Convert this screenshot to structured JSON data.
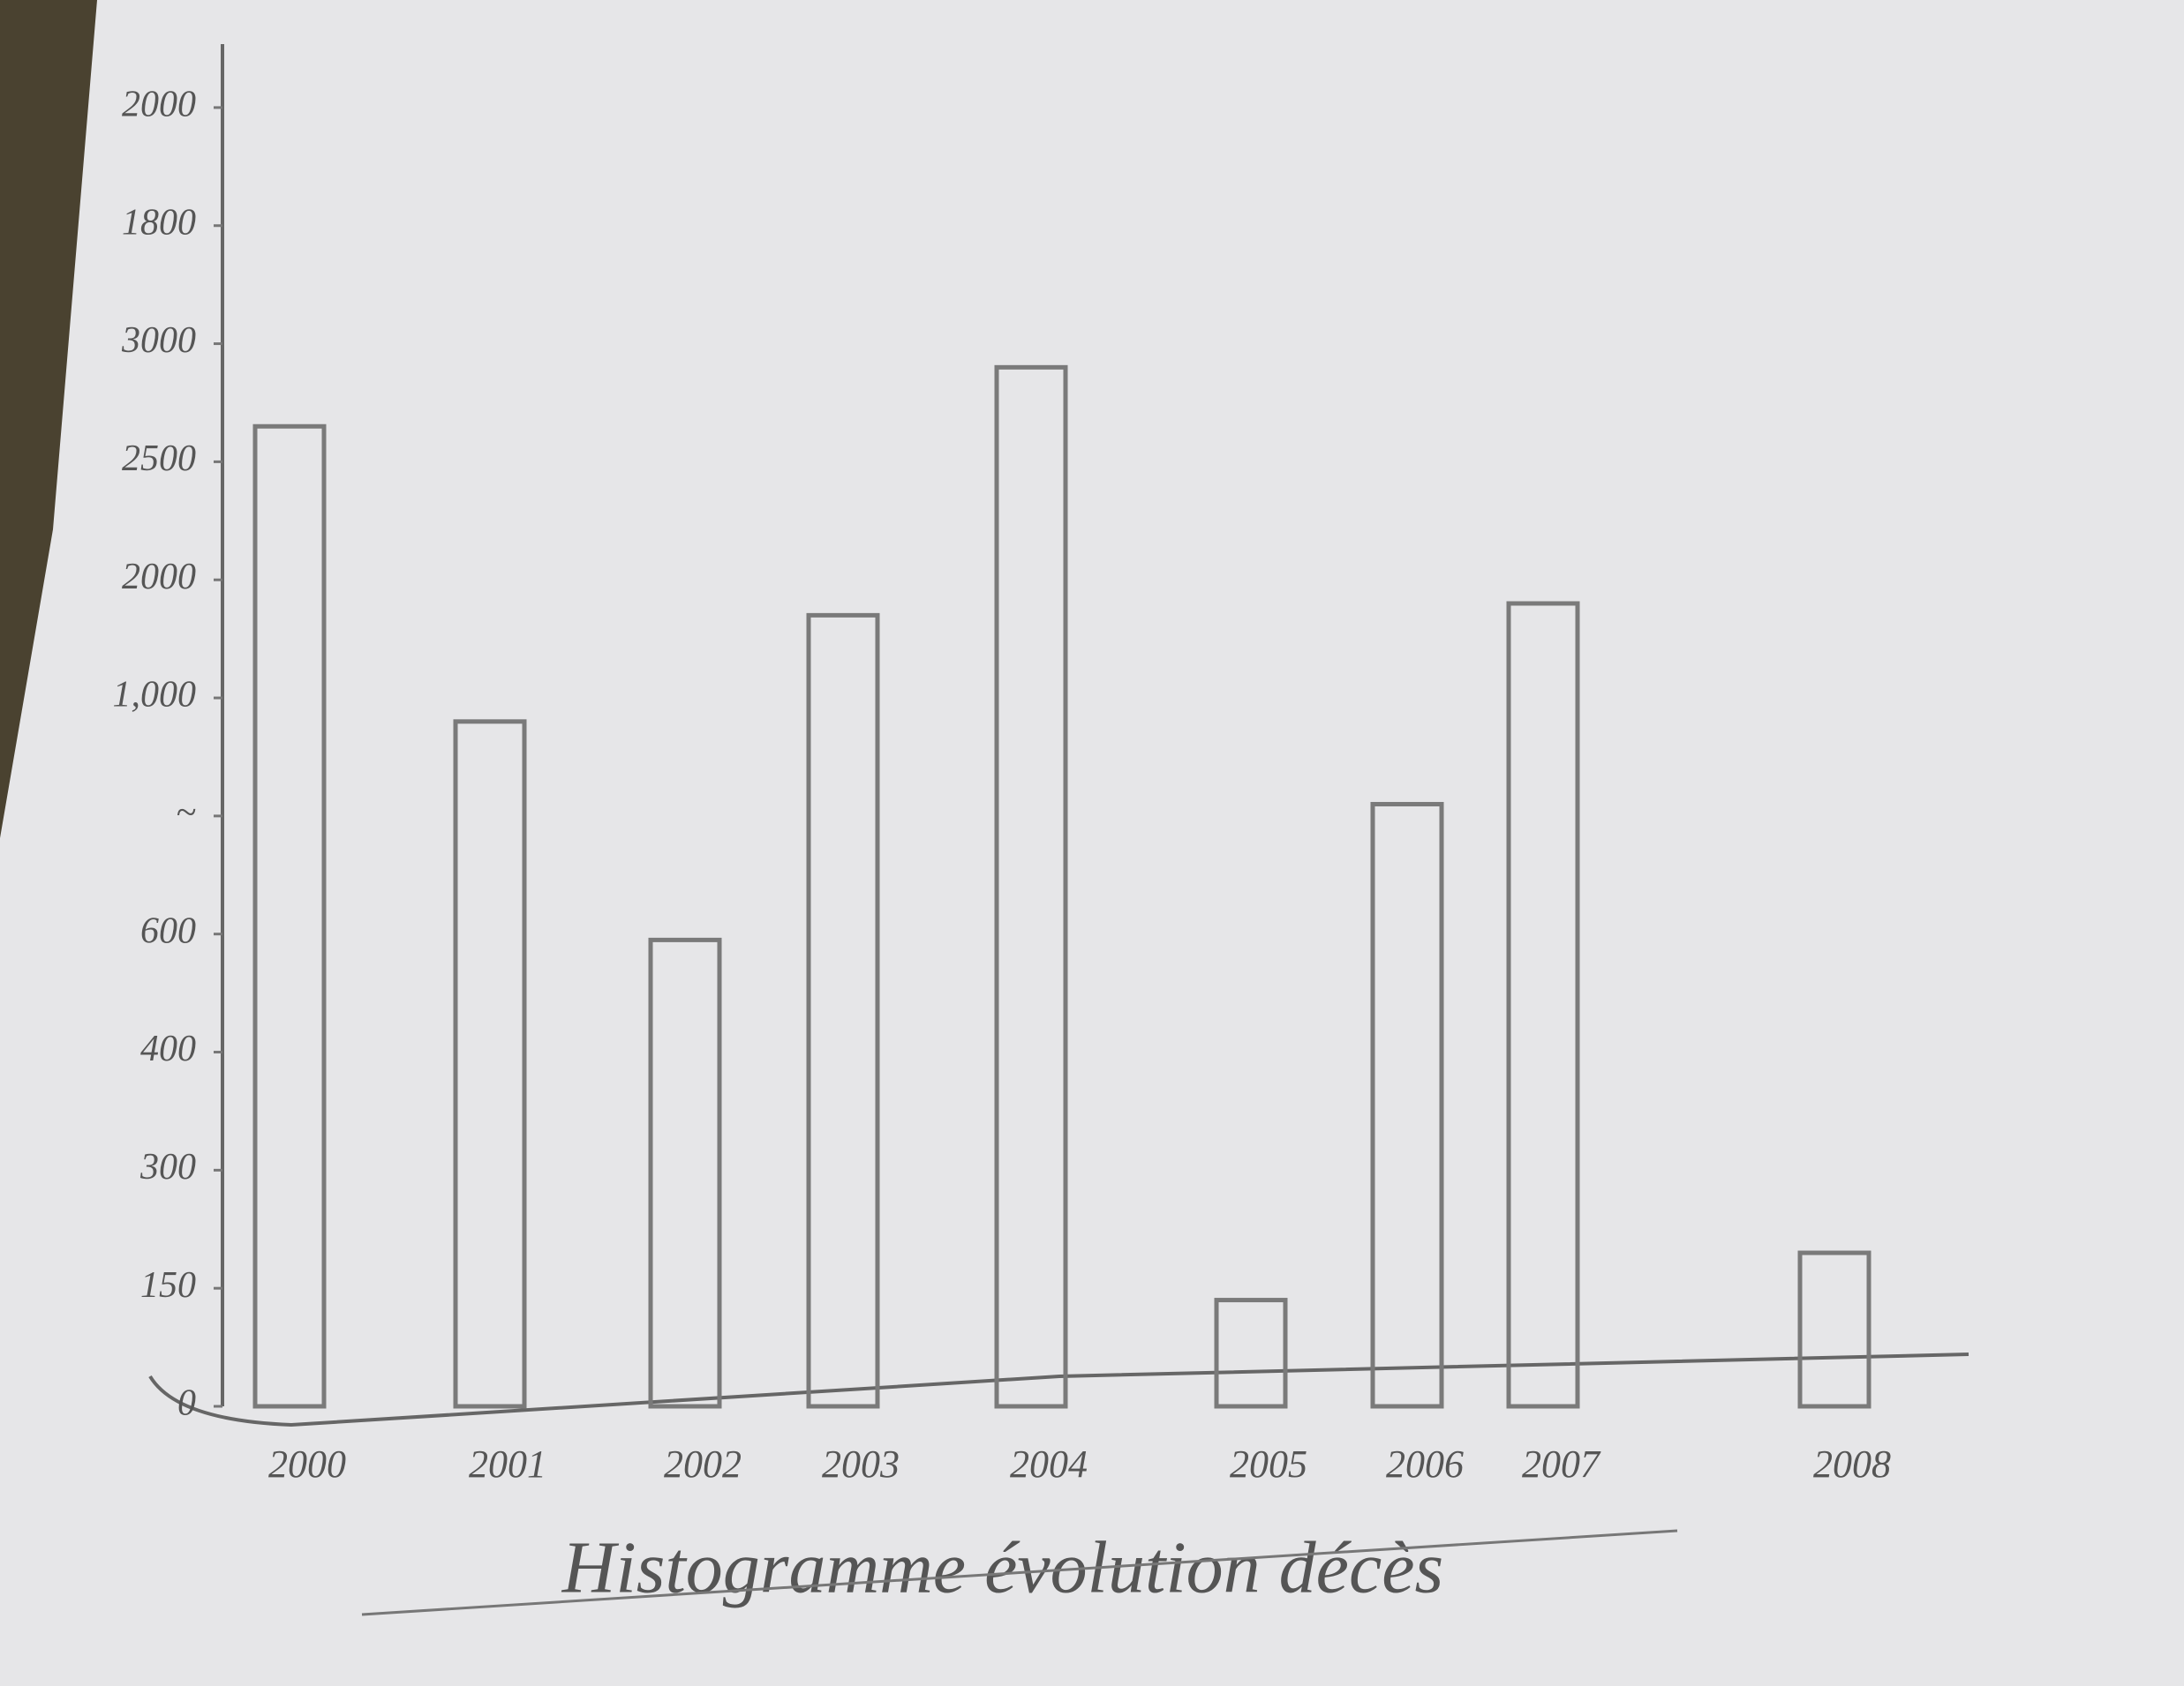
{
  "chart_data": {
    "type": "bar",
    "title": "Histogramme évolution décès",
    "categories": [
      "2000",
      "2001",
      "2002",
      "2003",
      "2004",
      "2005",
      "2006",
      "2007",
      "2008"
    ],
    "values": [
      8.3,
      5.8,
      3.95,
      6.7,
      8.8,
      0.9,
      5.1,
      6.8,
      1.3
    ],
    "color": "#7a7a7a",
    "ylim": [
      0,
      11.5
    ],
    "yticks": [
      0,
      {
        "value": 1,
        "label": "150"
      },
      {
        "value": 2,
        "label": "300"
      },
      {
        "value": 3,
        "label": "400"
      },
      {
        "value": 4,
        "label": "600"
      },
      {
        "value": 5,
        "label": "~"
      },
      {
        "value": 6,
        "label": "1,000"
      },
      {
        "value": 7,
        "label": "2000"
      },
      {
        "value": 8,
        "label": "2500"
      },
      {
        "value": 9,
        "label": "3000"
      },
      {
        "value": 10,
        "label": "1800"
      },
      {
        "value": 11,
        "label": "2000"
      }
    ],
    "grid": false
  }
}
